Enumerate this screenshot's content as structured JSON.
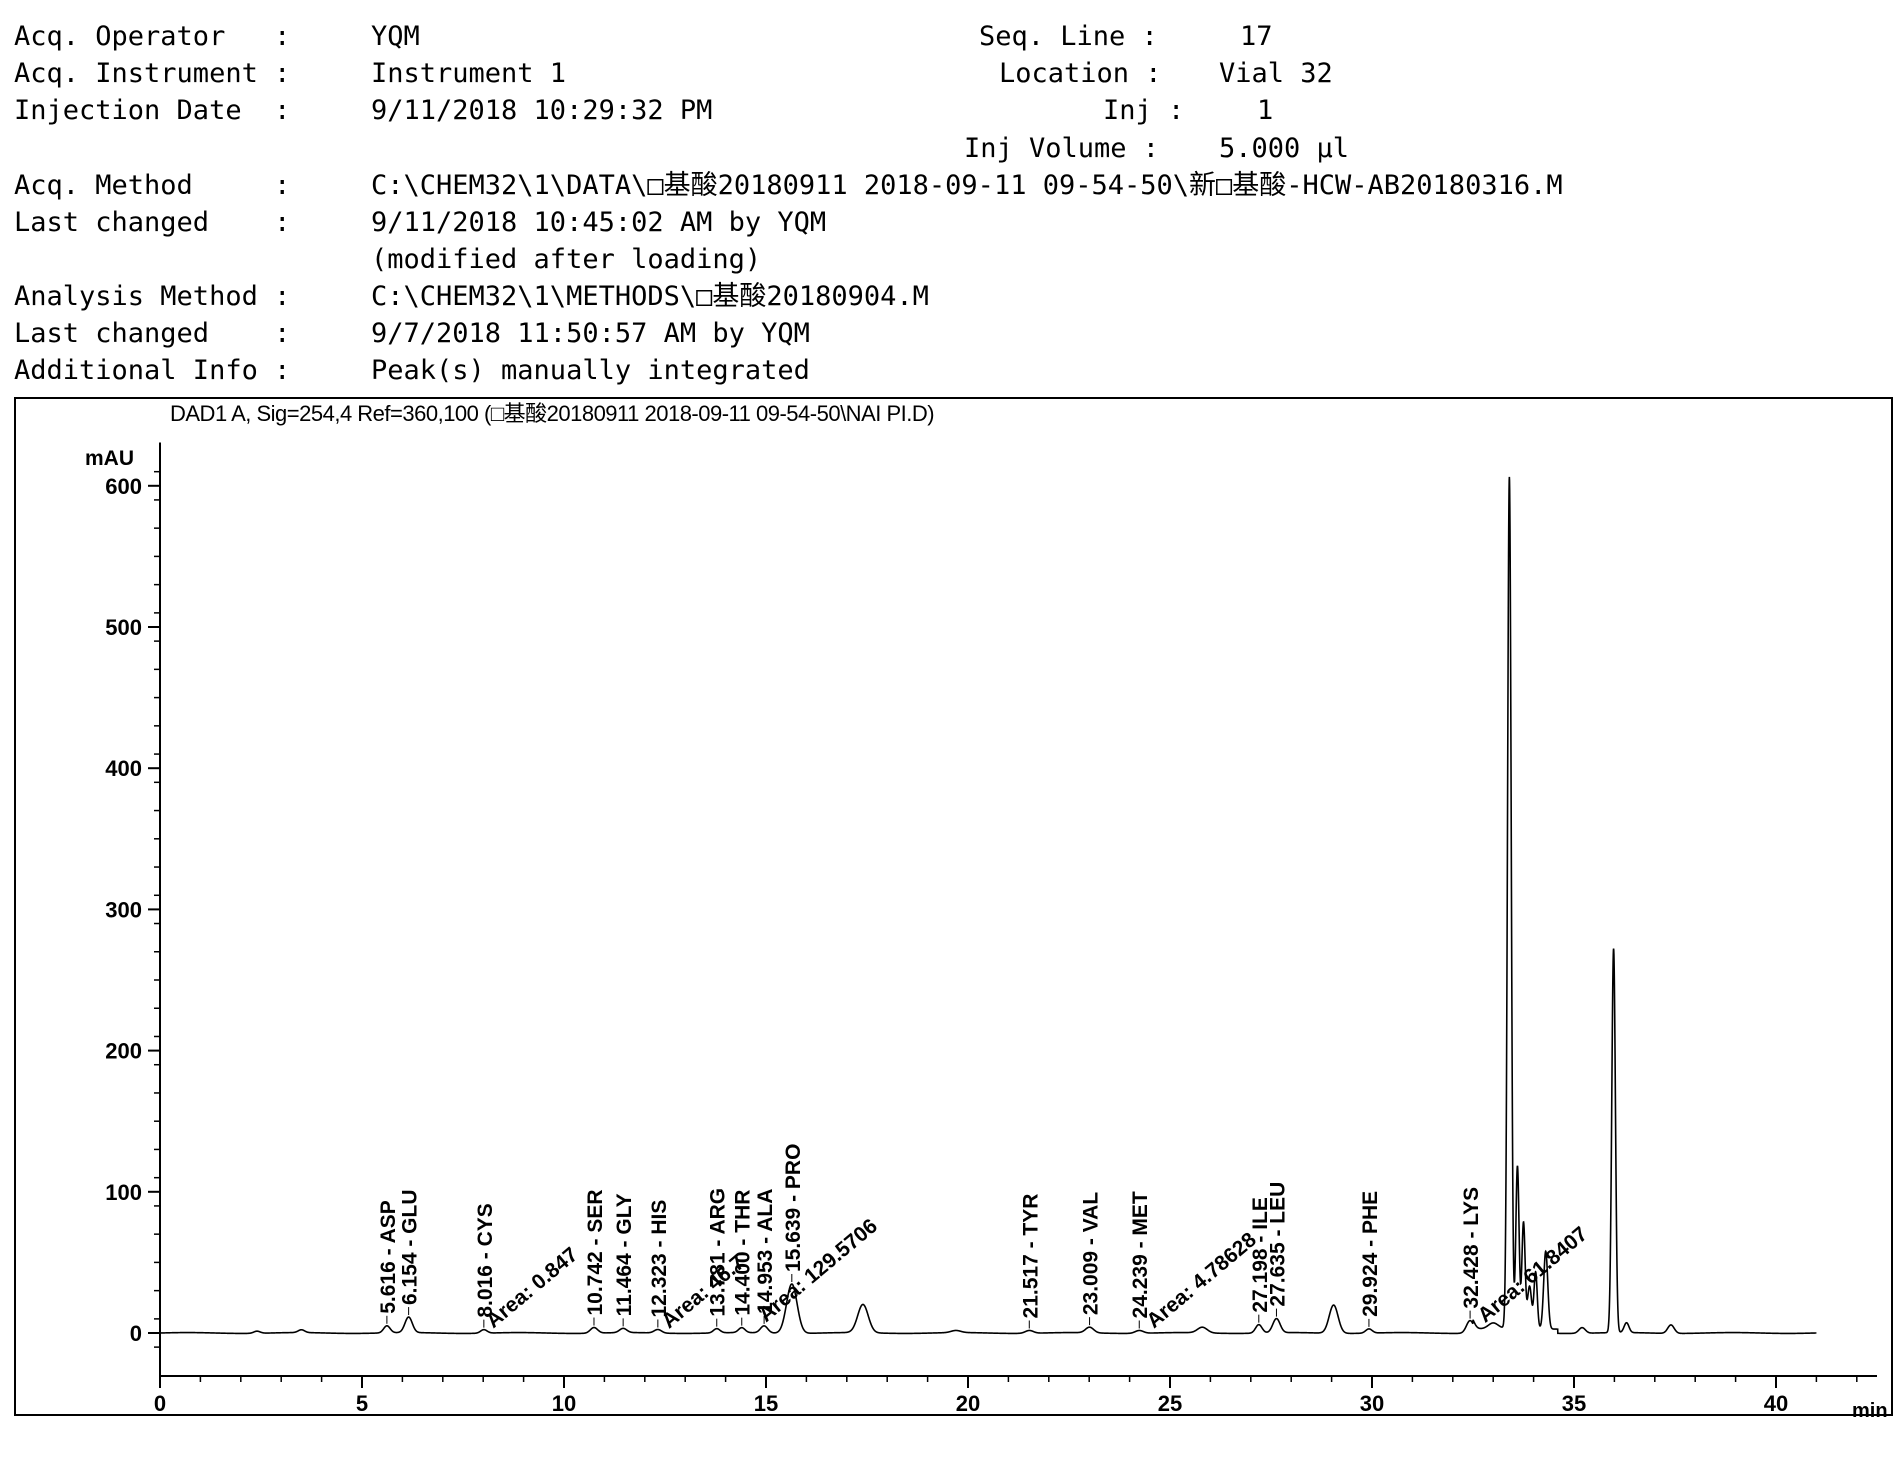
{
  "header": {
    "acq_operator": {
      "key": "Acq. Operator   :",
      "value": "YQM"
    },
    "acq_instrument": {
      "key": "Acq. Instrument :",
      "value": "Instrument 1"
    },
    "injection_date": {
      "key": "Injection Date  :",
      "value": "9/11/2018 10:29:32 PM"
    },
    "seq_line": {
      "key": "Seq. Line :",
      "value": "17"
    },
    "location": {
      "key": "Location :",
      "value": "Vial 32"
    },
    "inj": {
      "key": "Inj :",
      "value": "1"
    },
    "inj_volume": {
      "key": "Inj Volume :",
      "value": "5.000 µl"
    },
    "acq_method": {
      "key": "Acq. Method     :",
      "value": "C:\\CHEM32\\1\\DATA\\□基酸20180911 2018-09-11 09-54-50\\新□基酸-HCW-AB20180316.M"
    },
    "last_changed_1": {
      "key": "Last changed    :",
      "value": "9/11/2018 10:45:02 AM by YQM"
    },
    "modified_note": "(modified after loading)",
    "analysis_method": {
      "key": "Analysis Method :",
      "value": "C:\\CHEM32\\1\\METHODS\\□基酸20180904.M"
    },
    "last_changed_2": {
      "key": "Last changed    :",
      "value": "9/7/2018 11:50:57 AM by YQM"
    },
    "additional_info": {
      "key": "Additional Info :",
      "value": "Peak(s) manually integrated"
    }
  },
  "chart_data": {
    "type": "line",
    "title": "DAD1 A, Sig=254,4 Ref=360,100 (□基酸20180911 2018-09-11 09-54-50\\NAI PI.D)",
    "ylabel": "mAU",
    "xlabel": "min",
    "xlim": [
      0,
      42.5
    ],
    "ylim": [
      -15,
      625
    ],
    "x_ticks": [
      "0",
      "5",
      "10",
      "15",
      "20",
      "25",
      "30",
      "35",
      "40"
    ],
    "y_ticks": [
      "0",
      "100",
      "200",
      "300",
      "400",
      "500",
      "600"
    ],
    "grid": false,
    "line_color": "#000000",
    "peaks": [
      {
        "t": 2.4,
        "h": 1.5,
        "w": 0.08
      },
      {
        "t": 3.5,
        "h": 2,
        "w": 0.08
      },
      {
        "t": 5.616,
        "h": 5,
        "w": 0.08
      },
      {
        "t": 6.154,
        "h": 11,
        "w": 0.09
      },
      {
        "t": 8.016,
        "h": 2.5,
        "w": 0.08
      },
      {
        "t": 10.742,
        "h": 4,
        "w": 0.09
      },
      {
        "t": 11.464,
        "h": 3,
        "w": 0.09
      },
      {
        "t": 12.323,
        "h": 2.5,
        "w": 0.09
      },
      {
        "t": 13.781,
        "h": 3,
        "w": 0.08
      },
      {
        "t": 14.4,
        "h": 3.5,
        "w": 0.08
      },
      {
        "t": 14.953,
        "h": 5,
        "w": 0.09
      },
      {
        "t": 15.639,
        "h": 35,
        "w": 0.13
      },
      {
        "t": 17.4,
        "h": 20,
        "w": 0.13
      },
      {
        "t": 19.7,
        "h": 1.5,
        "w": 0.12
      },
      {
        "t": 21.517,
        "h": 2,
        "w": 0.1
      },
      {
        "t": 23.009,
        "h": 4,
        "w": 0.1
      },
      {
        "t": 24.239,
        "h": 2,
        "w": 0.1
      },
      {
        "t": 25.8,
        "h": 4,
        "w": 0.12
      },
      {
        "t": 27.198,
        "h": 6,
        "w": 0.08
      },
      {
        "t": 27.635,
        "h": 10,
        "w": 0.09
      },
      {
        "t": 29.05,
        "h": 20,
        "w": 0.11
      },
      {
        "t": 29.924,
        "h": 3,
        "w": 0.08
      },
      {
        "t": 32.428,
        "h": 9,
        "w": 0.09
      },
      {
        "t": 33.0,
        "h": 4,
        "w": 0.12
      },
      {
        "t": 33.4,
        "h": 603,
        "w": 0.045
      },
      {
        "t": 33.6,
        "h": 115,
        "w": 0.04
      },
      {
        "t": 33.75,
        "h": 75,
        "w": 0.04
      },
      {
        "t": 33.9,
        "h": 30,
        "w": 0.05
      },
      {
        "t": 34.05,
        "h": 40,
        "w": 0.04
      },
      {
        "t": 34.3,
        "h": 55,
        "w": 0.05
      },
      {
        "t": 35.2,
        "h": 4,
        "w": 0.08
      },
      {
        "t": 35.98,
        "h": 272,
        "w": 0.045
      },
      {
        "t": 36.3,
        "h": 7,
        "w": 0.06
      },
      {
        "t": 37.4,
        "h": 6,
        "w": 0.08
      }
    ],
    "peak_labels": [
      {
        "t": 5.616,
        "text": "5.616 - ASP"
      },
      {
        "t": 6.154,
        "text": "6.154 - GLU"
      },
      {
        "t": 8.016,
        "text": "8.016 - CYS"
      },
      {
        "t": 10.742,
        "text": "10.742 - SER"
      },
      {
        "t": 11.464,
        "text": "11.464 - GLY"
      },
      {
        "t": 12.323,
        "text": "12.323 - HIS"
      },
      {
        "t": 13.781,
        "text": "13.781 - ARG"
      },
      {
        "t": 14.4,
        "text": "14.400 - THR"
      },
      {
        "t": 14.953,
        "text": "14.953 - ALA"
      },
      {
        "t": 15.639,
        "text": "15.639 - PRO"
      },
      {
        "t": 21.517,
        "text": "21.517 - TYR"
      },
      {
        "t": 23.009,
        "text": "23.009 - VAL"
      },
      {
        "t": 24.239,
        "text": "24.239 - MET"
      },
      {
        "t": 27.198,
        "text": "27.198 - ILE"
      },
      {
        "t": 27.635,
        "text": "27.635 - LEU"
      },
      {
        "t": 29.924,
        "text": "29.924 - PHE"
      },
      {
        "t": 32.428,
        "text": "32.428 - LYS"
      }
    ],
    "area_labels": [
      {
        "t": 8.25,
        "text": "Area: 0.847"
      },
      {
        "t": 12.6,
        "text": "Area: 46.7"
      },
      {
        "t": 15.0,
        "text": "Area: 129.5706"
      },
      {
        "t": 24.6,
        "text": "Area: 4.78628"
      },
      {
        "t": 32.8,
        "text": "Area: 61.8407"
      }
    ]
  }
}
